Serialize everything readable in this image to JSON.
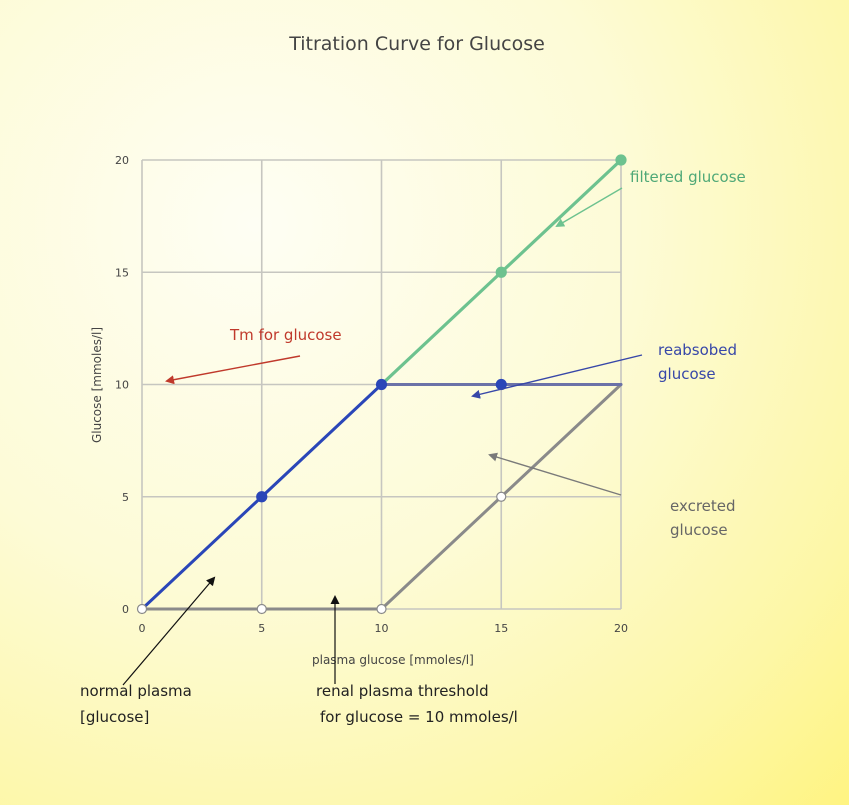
{
  "chart_data": {
    "type": "line",
    "title": "Titration Curve for Glucose",
    "xlabel": "plasma glucose [mmoles/l]",
    "ylabel": "Glucose [mmoles/l]",
    "xlim": [
      0,
      20
    ],
    "ylim": [
      0,
      20
    ],
    "xticks": [
      "0",
      "5",
      "10",
      "15",
      "20"
    ],
    "yticks": [
      "0",
      "5",
      "10",
      "15",
      "20"
    ],
    "grid": true,
    "series": [
      {
        "name": "filtered glucose",
        "color": "#6dc28f",
        "x": [
          0,
          5,
          10,
          15,
          20
        ],
        "y": [
          0,
          5,
          10,
          15,
          20
        ]
      },
      {
        "name": "reabsobed glucose",
        "color": "#2a46b8",
        "x": [
          0,
          5,
          10,
          15,
          20
        ],
        "y": [
          0,
          5,
          10,
          10,
          10
        ]
      },
      {
        "name": "excreted glucose",
        "color": "#8a8a8a",
        "x": [
          0,
          5,
          10,
          15,
          20
        ],
        "y": [
          0,
          0,
          0,
          5,
          10
        ]
      }
    ],
    "annotations": {
      "filtered": "filtered glucose",
      "tm": "Tm for glucose",
      "reabsorbed_line1": "reabsobed",
      "reabsorbed_line2": "glucose",
      "excreted_line1": "excreted",
      "excreted_line2": "glucose",
      "normal_line1": "normal plasma",
      "normal_line2": "[glucose]",
      "threshold_line1": "renal plasma threshold",
      "threshold_line2": "for glucose  = 10 mmoles/l"
    }
  }
}
